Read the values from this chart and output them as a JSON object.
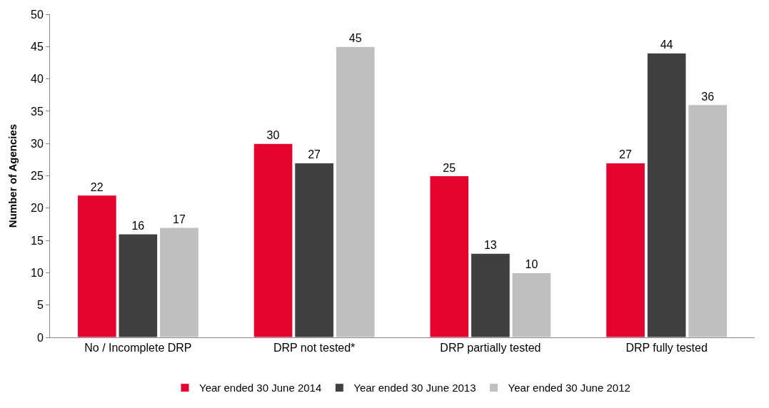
{
  "chart_data": {
    "type": "bar",
    "ylabel": "Number of Agencies",
    "categories": [
      "No / Incomplete DRP",
      "DRP not tested*",
      "DRP partially tested",
      "DRP fully tested"
    ],
    "series": [
      {
        "name": "Year ended 30 June 2014",
        "color": "#e4032e",
        "values": [
          22,
          30,
          25,
          27
        ]
      },
      {
        "name": "Year ended 30 June 2013",
        "color": "#404040",
        "values": [
          16,
          27,
          13,
          44
        ]
      },
      {
        "name": "Year ended 30 June 2012",
        "color": "#bfbfbf",
        "values": [
          17,
          45,
          10,
          36
        ]
      }
    ],
    "ylim": [
      0,
      50
    ],
    "yticks": [
      0,
      5,
      10,
      15,
      20,
      25,
      30,
      35,
      40,
      45,
      50
    ],
    "data_labels": true,
    "legend": "bottom"
  }
}
